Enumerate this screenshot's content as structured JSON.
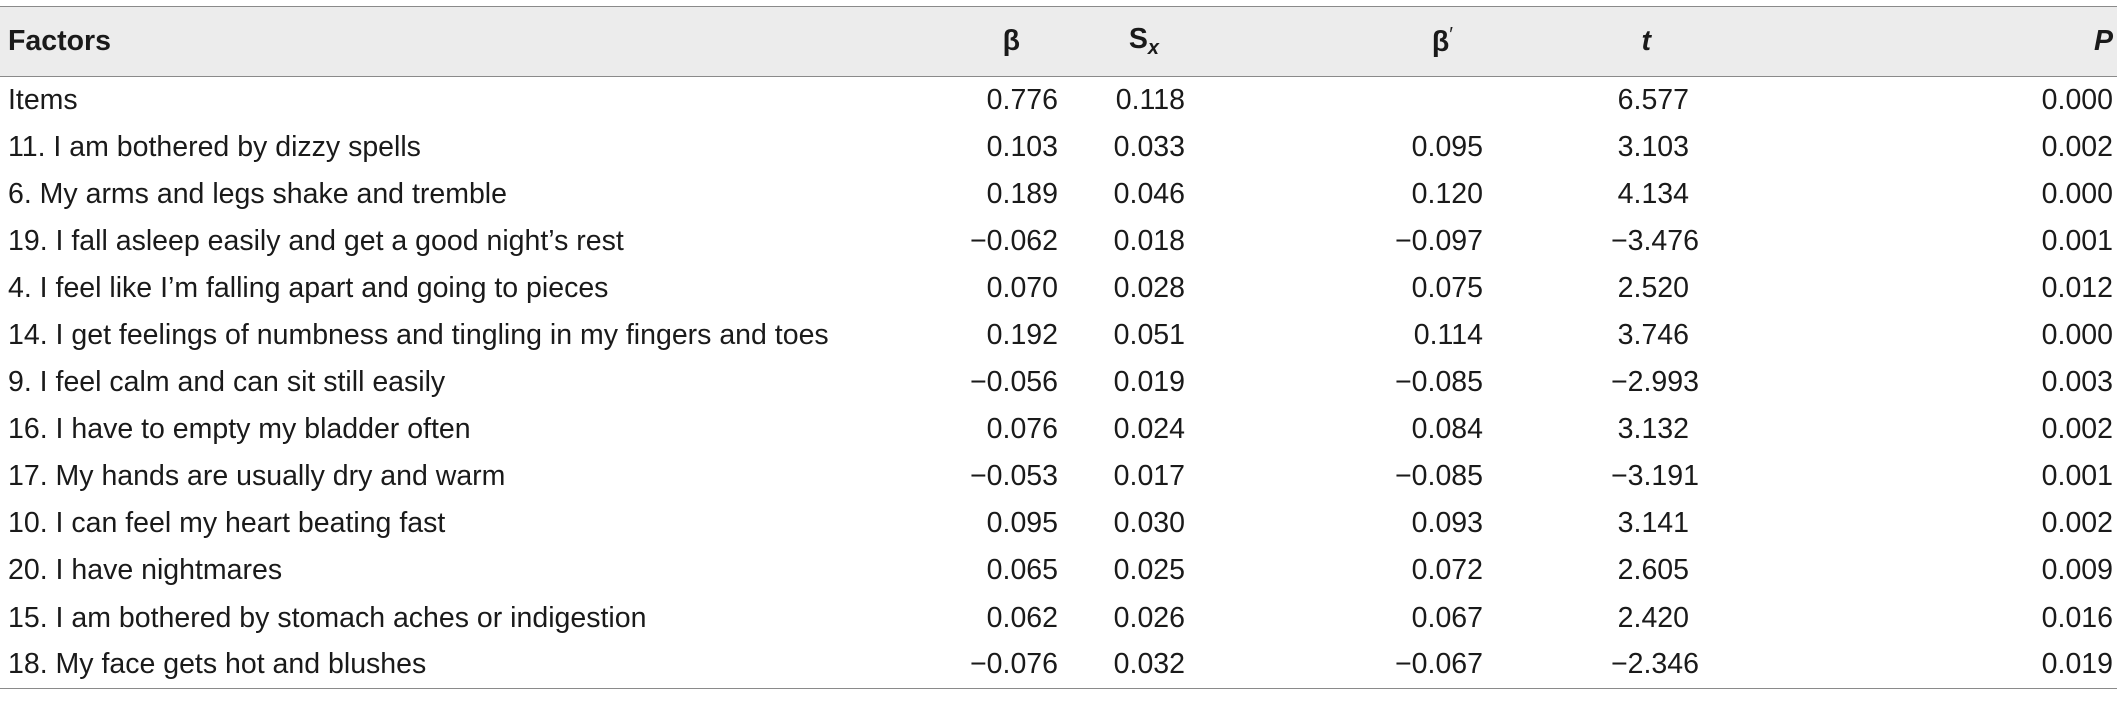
{
  "headers": {
    "factors": "Factors",
    "beta": "β",
    "sx_main": "S",
    "sx_sub": "x",
    "betap_main": "β",
    "betap_sup": "′",
    "t": "t",
    "p": "P"
  },
  "rows": [
    {
      "factor": "Items",
      "beta": "0.776",
      "sx": "0.118",
      "betap": "",
      "t": "6.577",
      "p": "0.000"
    },
    {
      "factor": "11. I am bothered by dizzy spells",
      "beta": "0.103",
      "sx": "0.033",
      "betap": "0.095",
      "t": "3.103",
      "p": "0.002"
    },
    {
      "factor": "6. My arms and legs shake and tremble",
      "beta": "0.189",
      "sx": "0.046",
      "betap": "0.120",
      "t": "4.134",
      "p": "0.000"
    },
    {
      "factor": "19. I fall asleep easily and get a good night’s rest",
      "beta": "−0.062",
      "sx": "0.018",
      "betap": "−0.097",
      "t": "−3.476",
      "p": "0.001"
    },
    {
      "factor": "4. I feel like I’m falling apart and going to pieces",
      "beta": "0.070",
      "sx": "0.028",
      "betap": "0.075",
      "t": "2.520",
      "p": "0.012"
    },
    {
      "factor": "14. I get feelings of numbness and tingling in my fingers and toes",
      "beta": "0.192",
      "sx": "0.051",
      "betap": "0.114",
      "t": "3.746",
      "p": "0.000"
    },
    {
      "factor": "9. I feel calm and can sit still easily",
      "beta": "−0.056",
      "sx": "0.019",
      "betap": "−0.085",
      "t": "−2.993",
      "p": "0.003"
    },
    {
      "factor": "16. I have to empty my bladder often",
      "beta": "0.076",
      "sx": "0.024",
      "betap": "0.084",
      "t": "3.132",
      "p": "0.002"
    },
    {
      "factor": "17. My hands are usually dry and warm",
      "beta": "−0.053",
      "sx": "0.017",
      "betap": "−0.085",
      "t": "−3.191",
      "p": "0.001"
    },
    {
      "factor": "10. I can feel my heart beating fast",
      "beta": "0.095",
      "sx": "0.030",
      "betap": "0.093",
      "t": "3.141",
      "p": "0.002"
    },
    {
      "factor": "20. I have nightmares",
      "beta": "0.065",
      "sx": "0.025",
      "betap": "0.072",
      "t": "2.605",
      "p": "0.009"
    },
    {
      "factor": "15. I am bothered by stomach aches or indigestion",
      "beta": "0.062",
      "sx": "0.026",
      "betap": "0.067",
      "t": "2.420",
      "p": "0.016"
    },
    {
      "factor": "18. My face gets hot and blushes",
      "beta": "−0.076",
      "sx": "0.032",
      "betap": "−0.067",
      "t": "−2.346",
      "p": "0.019"
    }
  ]
}
